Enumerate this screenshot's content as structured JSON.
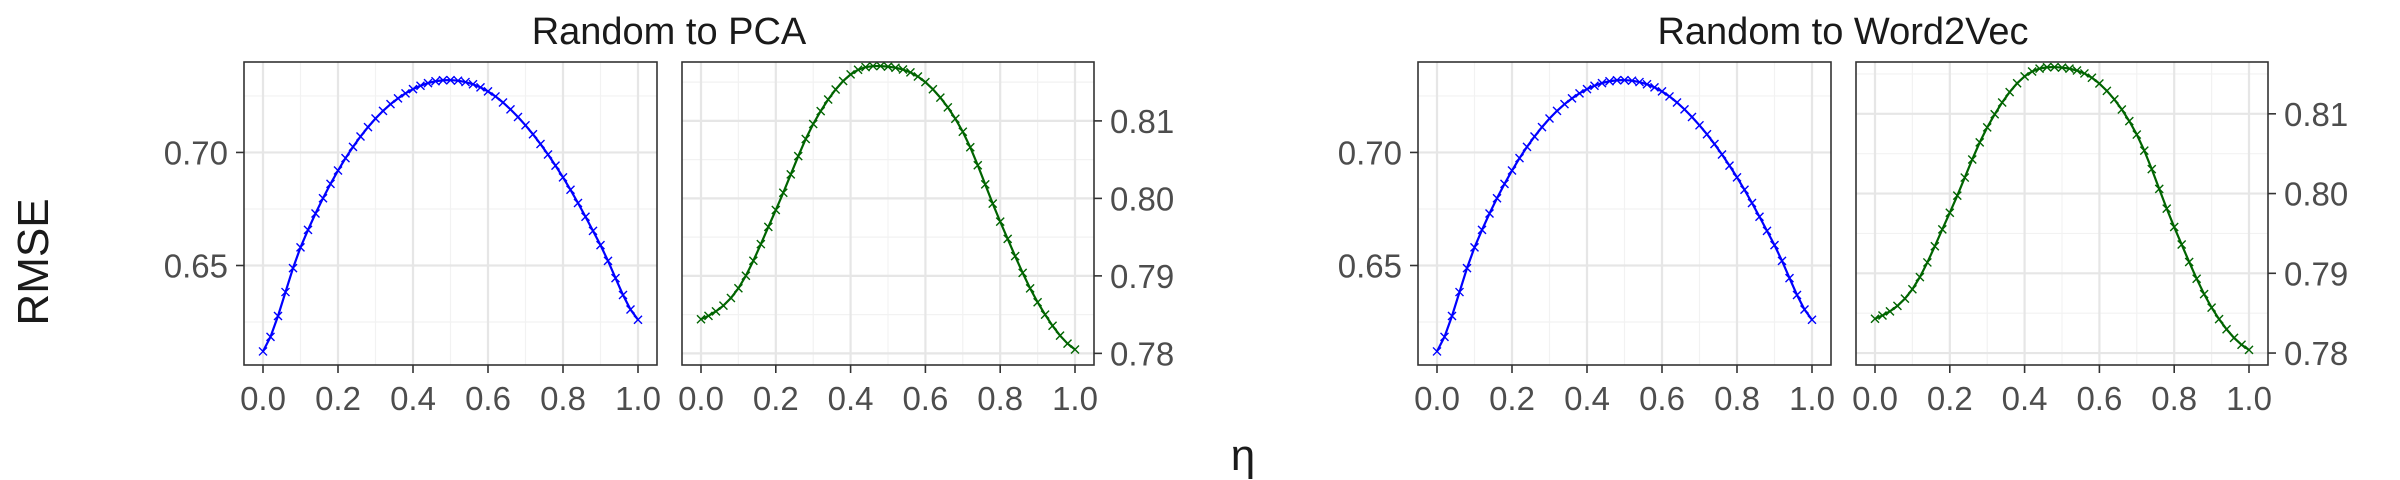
{
  "figure": {
    "ylabel": "RMSE",
    "xlabel": "η"
  },
  "colors": {
    "blue": "#0000ff",
    "green": "#006400"
  },
  "chart_data": [
    {
      "type": "line",
      "title": "Random to PCA",
      "panel": "left",
      "xlim": [
        0,
        1
      ],
      "ylim": [
        0.606,
        0.74
      ],
      "xticks": [
        "0.0",
        "0.2",
        "0.4",
        "0.6",
        "0.8",
        "1.0"
      ],
      "yticks": [
        {
          "value": 0.65,
          "label": "0.65"
        },
        {
          "value": 0.7,
          "label": "0.70"
        }
      ],
      "y_axis_side": "left",
      "color": "#0000ff",
      "series": [
        {
          "x": [
            0.0,
            0.1,
            0.2,
            0.3,
            0.4,
            0.5,
            0.6,
            0.7,
            0.8,
            0.9,
            1.0
          ],
          "y": [
            0.612,
            0.658,
            0.692,
            0.715,
            0.728,
            0.732,
            0.727,
            0.712,
            0.689,
            0.659,
            0.626
          ]
        }
      ]
    },
    {
      "type": "line",
      "title": "",
      "panel": "right",
      "xlim": [
        0,
        1
      ],
      "ylim": [
        0.7785,
        0.8176
      ],
      "xticks": [
        "0.0",
        "0.2",
        "0.4",
        "0.6",
        "0.8",
        "1.0"
      ],
      "yticks": [
        {
          "value": 0.78,
          "label": "0.78"
        },
        {
          "value": 0.79,
          "label": "0.79"
        },
        {
          "value": 0.8,
          "label": "0.80"
        },
        {
          "value": 0.81,
          "label": "0.81"
        }
      ],
      "y_axis_side": "right",
      "color": "#006400",
      "series": [
        {
          "x": [
            0.0,
            0.1,
            0.2,
            0.3,
            0.4,
            0.5,
            0.6,
            0.7,
            0.8,
            0.9,
            1.0
          ],
          "y": [
            0.7844,
            0.7884,
            0.7985,
            0.8096,
            0.816,
            0.817,
            0.815,
            0.8086,
            0.797,
            0.7866,
            0.7805
          ]
        }
      ]
    },
    {
      "type": "line",
      "title": "Random to Word2Vec",
      "panel": "left",
      "xlim": [
        0,
        1
      ],
      "ylim": [
        0.606,
        0.74
      ],
      "xticks": [
        "0.0",
        "0.2",
        "0.4",
        "0.6",
        "0.8",
        "1.0"
      ],
      "yticks": [
        {
          "value": 0.65,
          "label": "0.65"
        },
        {
          "value": 0.7,
          "label": "0.70"
        }
      ],
      "y_axis_side": "left",
      "color": "#0000ff",
      "series": [
        {
          "x": [
            0.0,
            0.1,
            0.2,
            0.3,
            0.4,
            0.5,
            0.6,
            0.7,
            0.8,
            0.9,
            1.0
          ],
          "y": [
            0.612,
            0.658,
            0.692,
            0.715,
            0.728,
            0.732,
            0.727,
            0.712,
            0.689,
            0.659,
            0.626
          ]
        }
      ]
    },
    {
      "type": "line",
      "title": "",
      "panel": "right",
      "xlim": [
        0,
        1
      ],
      "ylim": [
        0.7785,
        0.8165
      ],
      "xticks": [
        "0.0",
        "0.2",
        "0.4",
        "0.6",
        "0.8",
        "1.0"
      ],
      "yticks": [
        {
          "value": 0.78,
          "label": "0.78"
        },
        {
          "value": 0.79,
          "label": "0.79"
        },
        {
          "value": 0.8,
          "label": "0.80"
        },
        {
          "value": 0.81,
          "label": "0.81"
        }
      ],
      "y_axis_side": "right",
      "color": "#006400",
      "series": [
        {
          "x": [
            0.0,
            0.1,
            0.2,
            0.3,
            0.4,
            0.5,
            0.6,
            0.7,
            0.8,
            0.9,
            1.0
          ],
          "y": [
            0.7843,
            0.788,
            0.7976,
            0.8083,
            0.8147,
            0.8158,
            0.8138,
            0.8074,
            0.7958,
            0.7857,
            0.7804
          ]
        }
      ]
    }
  ]
}
